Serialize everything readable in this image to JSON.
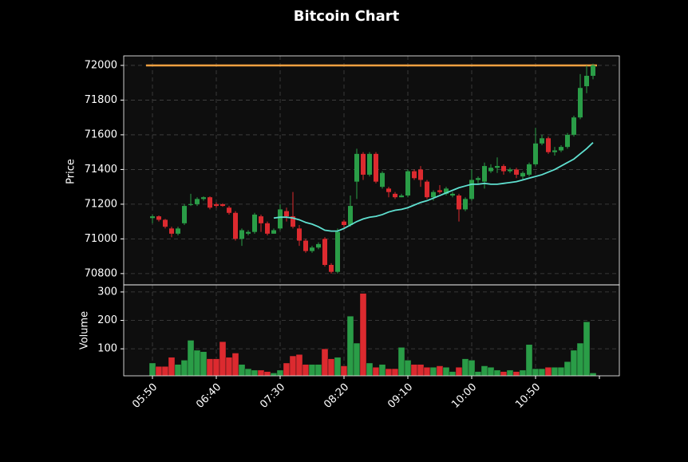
{
  "chart_data": {
    "type": "candlestick",
    "title": "Bitcoin Chart",
    "ylabel": "Price",
    "volume_ylabel": "Volume",
    "categories": [
      "05:50",
      null,
      null,
      null,
      null,
      null,
      null,
      null,
      null,
      null,
      "06:40",
      null,
      null,
      null,
      null,
      null,
      null,
      null,
      null,
      null,
      "07:30",
      null,
      null,
      null,
      null,
      null,
      null,
      null,
      null,
      null,
      "08:20",
      null,
      null,
      null,
      null,
      null,
      null,
      null,
      null,
      null,
      "09:10",
      null,
      null,
      null,
      null,
      null,
      null,
      null,
      null,
      null,
      "10:00",
      null,
      null,
      null,
      null,
      null,
      null,
      null,
      null,
      null,
      "10:50",
      null,
      null,
      null,
      null,
      null,
      null,
      null,
      null,
      null
    ],
    "open": [
      71120,
      71130,
      71110,
      71060,
      71030,
      71090,
      71200,
      71200,
      71230,
      71240,
      71200,
      71200,
      71180,
      71150,
      71000,
      71030,
      71040,
      71130,
      71090,
      71030,
      71060,
      71160,
      71130,
      71060,
      70990,
      70930,
      70950,
      71000,
      70850,
      70810,
      71100,
      71080,
      71330,
      71490,
      71370,
      71490,
      71300,
      71290,
      71260,
      71240,
      71250,
      71390,
      71400,
      71330,
      71240,
      71280,
      71260,
      71250,
      71250,
      71170,
      71230,
      71340,
      71330,
      71390,
      71410,
      71420,
      71390,
      71400,
      71360,
      71370,
      71430,
      71550,
      71580,
      71500,
      71510,
      71530,
      71600,
      71700,
      71880,
      71940
    ],
    "high": [
      71140,
      71135,
      71115,
      71070,
      71070,
      71200,
      71260,
      71240,
      71245,
      71245,
      71210,
      71205,
      71190,
      71160,
      71060,
      71050,
      71150,
      71140,
      71100,
      71060,
      71200,
      71180,
      71270,
      71080,
      71000,
      70960,
      70980,
      71010,
      70860,
      71060,
      71110,
      71250,
      71520,
      71500,
      71500,
      71500,
      71390,
      71300,
      71270,
      71260,
      71400,
      71400,
      71420,
      71340,
      71280,
      71310,
      71300,
      71270,
      71260,
      71240,
      71400,
      71360,
      71440,
      71430,
      71470,
      71430,
      71410,
      71410,
      71390,
      71440,
      71640,
      71600,
      71590,
      71530,
      71540,
      71610,
      71710,
      71950,
      72000,
      72010
    ],
    "low": [
      71090,
      71100,
      71060,
      71010,
      71020,
      71080,
      71190,
      71190,
      71220,
      71170,
      71180,
      71185,
      71140,
      70990,
      70960,
      71020,
      71030,
      71040,
      71020,
      71030,
      71050,
      71100,
      71060,
      70960,
      70920,
      70920,
      70940,
      70840,
      70800,
      70800,
      71060,
      71070,
      71230,
      71340,
      71360,
      71320,
      71290,
      71240,
      71230,
      71240,
      71240,
      71340,
      71300,
      71230,
      71220,
      71260,
      71250,
      71240,
      71100,
      71160,
      71220,
      71320,
      71290,
      71380,
      71380,
      71370,
      71380,
      71350,
      71340,
      71360,
      71420,
      71540,
      71490,
      71480,
      71500,
      71520,
      71590,
      71690,
      71840,
      71920
    ],
    "close": [
      71130,
      71110,
      71070,
      71030,
      71060,
      71190,
      71200,
      71230,
      71240,
      71180,
      71190,
      71190,
      71150,
      71000,
      71050,
      71040,
      71140,
      71090,
      71030,
      71050,
      71170,
      71130,
      71070,
      70990,
      70930,
      70950,
      70970,
      70850,
      70810,
      71040,
      71080,
      71190,
      71490,
      71370,
      71490,
      71330,
      71380,
      71270,
      71240,
      71250,
      71390,
      71350,
      71340,
      71240,
      71270,
      71270,
      71290,
      71260,
      71170,
      71230,
      71340,
      71350,
      71420,
      71410,
      71420,
      71390,
      71400,
      71370,
      71380,
      71430,
      71550,
      71580,
      71500,
      71510,
      71530,
      71600,
      71700,
      71870,
      71940,
      72000
    ],
    "volume": [
      50,
      38,
      38,
      70,
      45,
      60,
      130,
      95,
      90,
      65,
      65,
      125,
      70,
      85,
      45,
      30,
      25,
      25,
      20,
      15,
      25,
      50,
      75,
      80,
      45,
      45,
      45,
      100,
      65,
      70,
      40,
      215,
      120,
      295,
      50,
      35,
      45,
      30,
      30,
      105,
      60,
      45,
      45,
      35,
      35,
      40,
      35,
      20,
      35,
      65,
      60,
      20,
      40,
      35,
      25,
      20,
      25,
      20,
      25,
      115,
      30,
      30,
      35,
      35,
      35,
      55,
      95,
      120,
      195,
      15
    ],
    "up_color": "#2a9d47",
    "down_color": "#dc2a2f",
    "ma": {
      "color": "#5fe0d0",
      "values": [
        null,
        null,
        null,
        null,
        null,
        null,
        null,
        null,
        null,
        null,
        null,
        null,
        null,
        null,
        null,
        null,
        null,
        null,
        null,
        71120,
        71125,
        71125,
        71120,
        71110,
        71095,
        71085,
        71070,
        71050,
        71045,
        71045,
        71060,
        71080,
        71100,
        71115,
        71125,
        71130,
        71140,
        71155,
        71165,
        71170,
        71180,
        71195,
        71210,
        71220,
        71235,
        71250,
        71265,
        71280,
        71295,
        71305,
        71315,
        71315,
        71320,
        71315,
        71315,
        71320,
        71325,
        71330,
        71340,
        71350,
        71360,
        71370,
        71385,
        71400,
        71420,
        71440,
        71460,
        71490,
        71520,
        71555
      ]
    },
    "hline": {
      "value": 72000,
      "color": "#f0a040"
    },
    "ylim": [
      70735,
      72055
    ],
    "yticks": [
      70800,
      71000,
      71200,
      71400,
      71600,
      71800,
      72000
    ],
    "volume_ylim": [
      5,
      325
    ],
    "volume_yticks": [
      100,
      200,
      300
    ],
    "grid": true
  }
}
